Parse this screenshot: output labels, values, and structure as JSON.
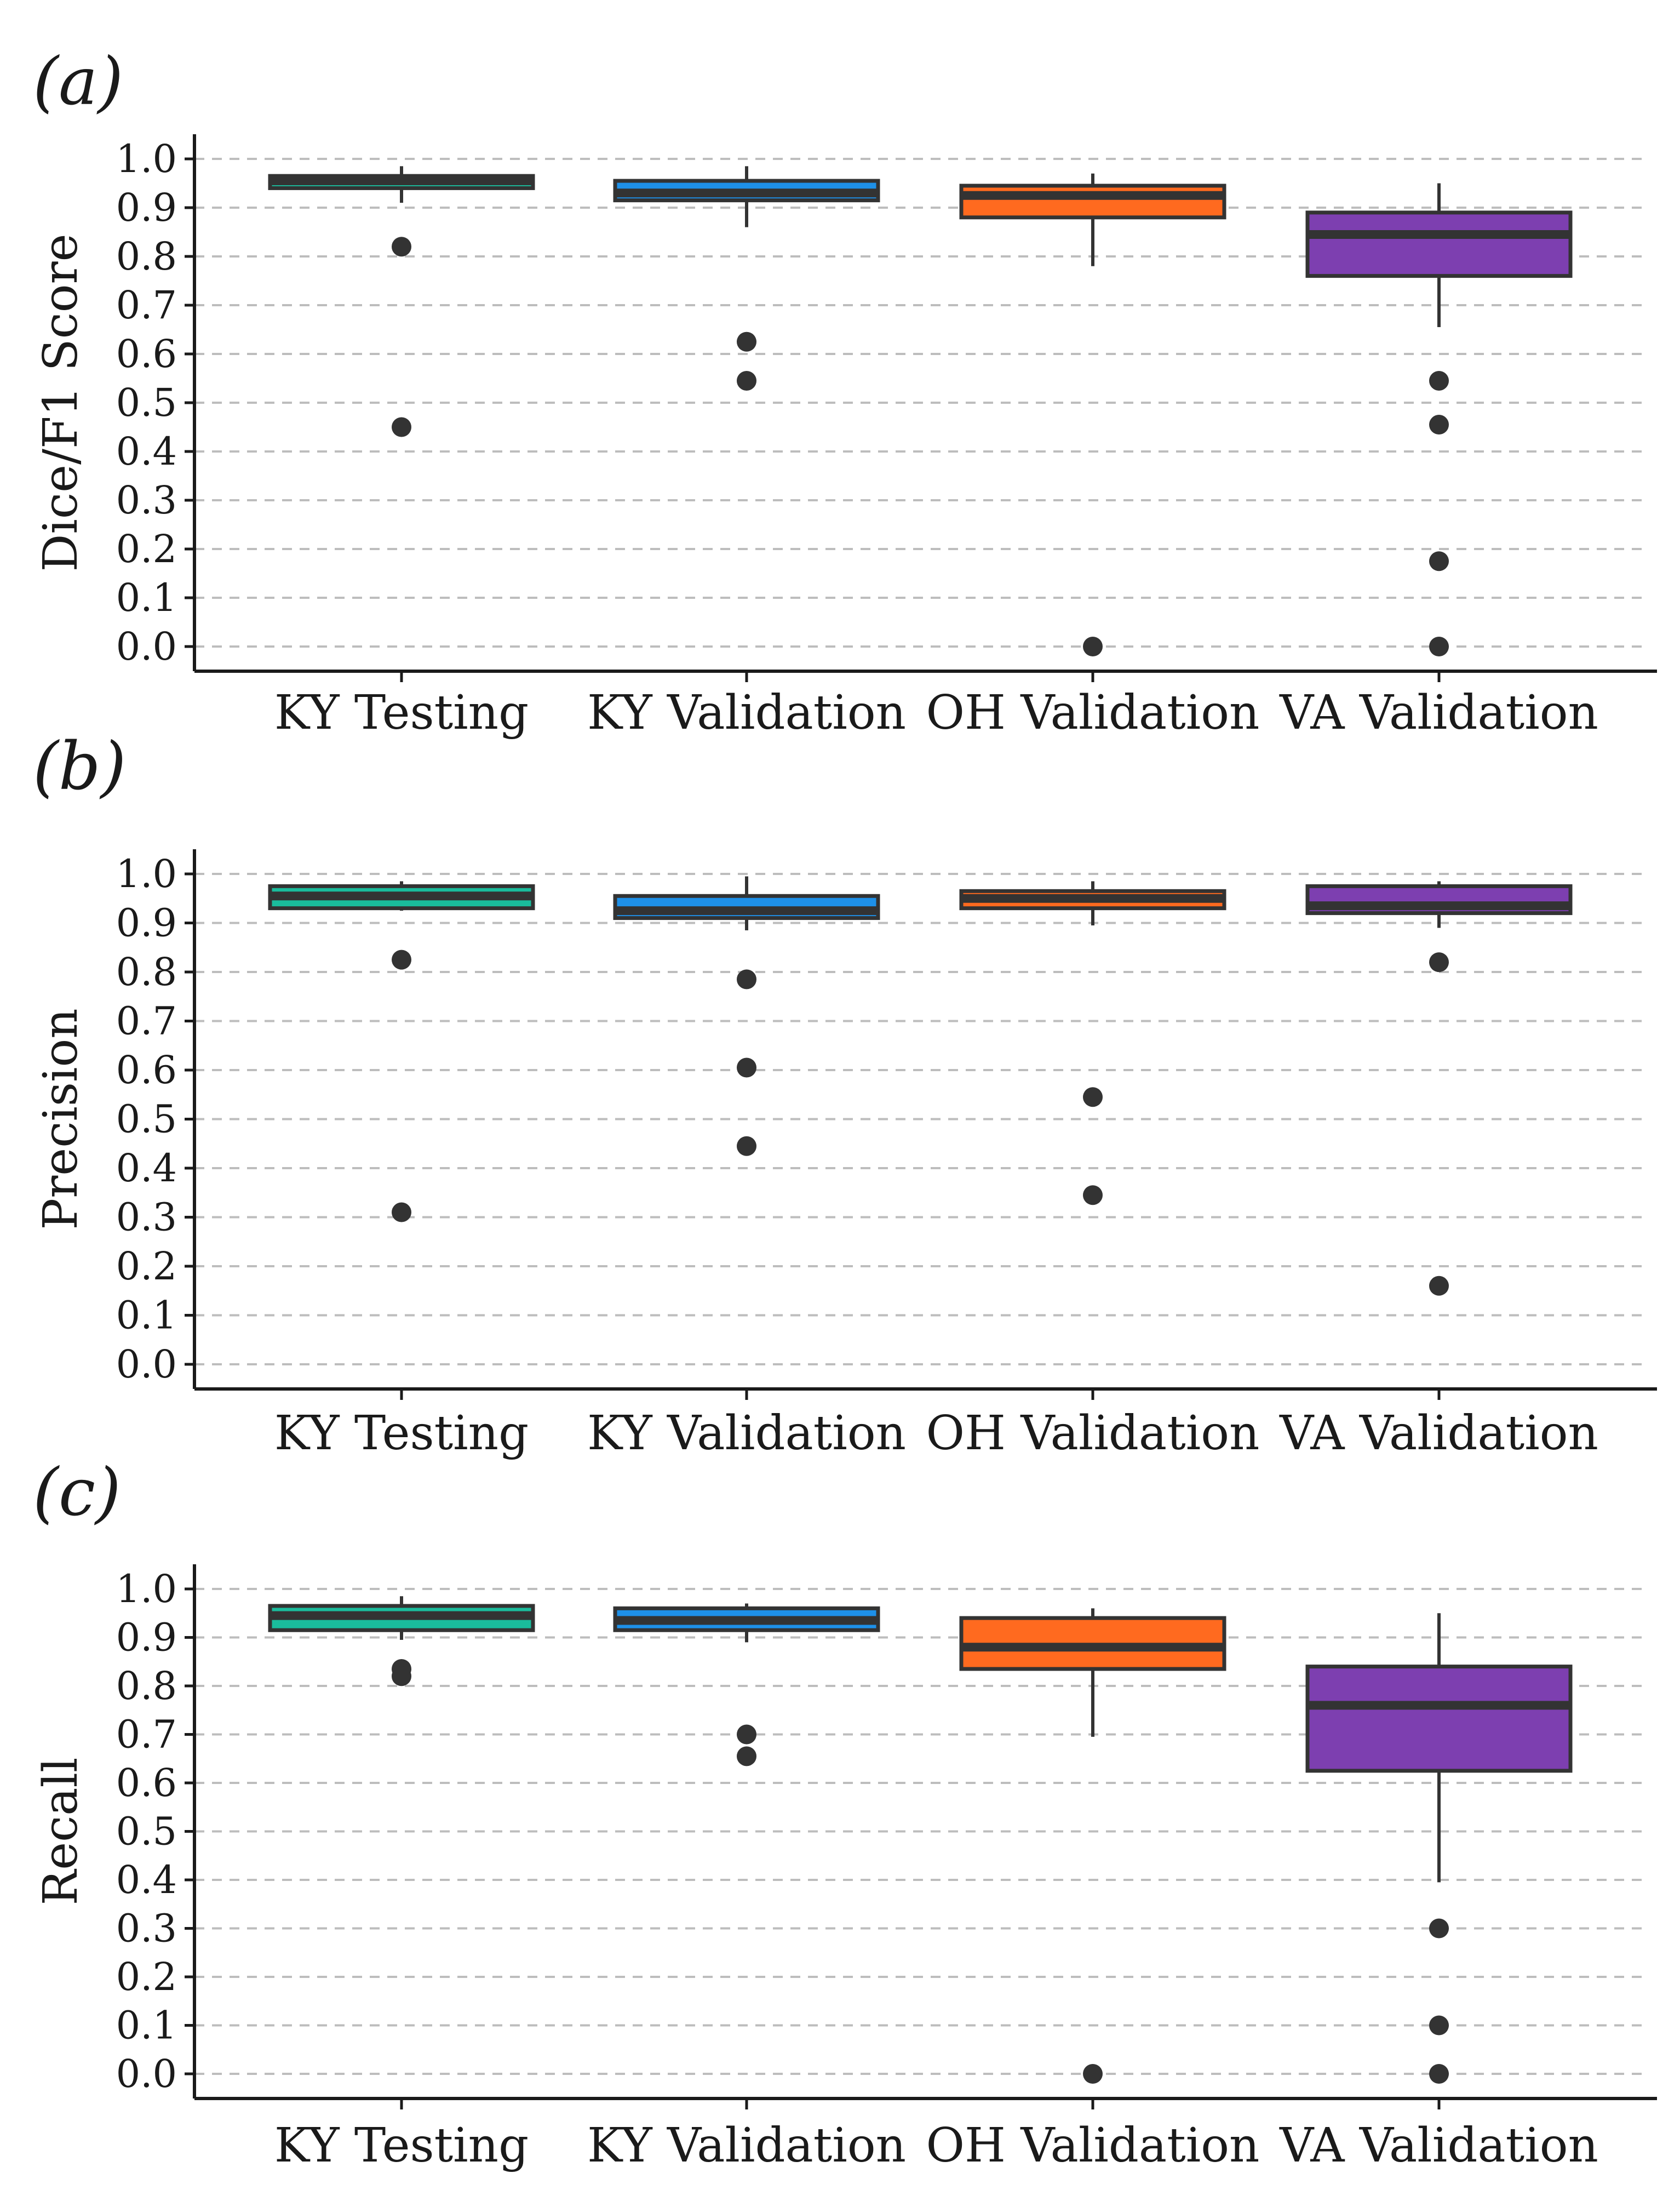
{
  "chart_data": [
    {
      "type": "box",
      "panel_label": "(a)",
      "ylabel": "Dice/F1 Score",
      "xlabel": "",
      "ylim": [
        0,
        1.0
      ],
      "yticks": [
        "0.0",
        "0.1",
        "0.2",
        "0.3",
        "0.4",
        "0.5",
        "0.6",
        "0.7",
        "0.8",
        "0.9",
        "1.0"
      ],
      "grid": true,
      "categories": [
        "KY Testing",
        "KY Validation",
        "OH Validation",
        "VA Validation"
      ],
      "colors": [
        "#1abc9c",
        "#1e90e8",
        "#ff6a1f",
        "#7d3fb0"
      ],
      "boxes": [
        {
          "min": 0.91,
          "q1": 0.94,
          "median": 0.955,
          "q3": 0.965,
          "max": 0.985,
          "outliers": [
            0.82,
            0.45
          ]
        },
        {
          "min": 0.86,
          "q1": 0.915,
          "median": 0.93,
          "q3": 0.955,
          "max": 0.985,
          "outliers": [
            0.625,
            0.545
          ]
        },
        {
          "min": 0.78,
          "q1": 0.88,
          "median": 0.925,
          "q3": 0.945,
          "max": 0.97,
          "outliers": [
            0.0
          ]
        },
        {
          "min": 0.655,
          "q1": 0.76,
          "median": 0.845,
          "q3": 0.89,
          "max": 0.95,
          "outliers": [
            0.545,
            0.455,
            0.175,
            0.0
          ]
        }
      ]
    },
    {
      "type": "box",
      "panel_label": "(b)",
      "ylabel": "Precision",
      "xlabel": "",
      "ylim": [
        0,
        1.0
      ],
      "yticks": [
        "0.0",
        "0.1",
        "0.2",
        "0.3",
        "0.4",
        "0.5",
        "0.6",
        "0.7",
        "0.8",
        "0.9",
        "1.0"
      ],
      "grid": true,
      "categories": [
        "KY Testing",
        "KY Validation",
        "OH Validation",
        "VA Validation"
      ],
      "colors": [
        "#1abc9c",
        "#1e90e8",
        "#ff6a1f",
        "#7d3fb0"
      ],
      "boxes": [
        {
          "min": 0.925,
          "q1": 0.93,
          "median": 0.955,
          "q3": 0.975,
          "max": 0.985,
          "outliers": [
            0.825,
            0.31
          ]
        },
        {
          "min": 0.885,
          "q1": 0.91,
          "median": 0.925,
          "q3": 0.955,
          "max": 0.995,
          "outliers": [
            0.785,
            0.605,
            0.445
          ]
        },
        {
          "min": 0.895,
          "q1": 0.93,
          "median": 0.95,
          "q3": 0.965,
          "max": 0.985,
          "outliers": [
            0.545,
            0.345
          ]
        },
        {
          "min": 0.89,
          "q1": 0.92,
          "median": 0.935,
          "q3": 0.975,
          "max": 0.985,
          "outliers": [
            0.82,
            0.16
          ]
        }
      ]
    },
    {
      "type": "box",
      "panel_label": "(c)",
      "ylabel": "Recall",
      "xlabel": "",
      "ylim": [
        0,
        1.0
      ],
      "yticks": [
        "0.0",
        "0.1",
        "0.2",
        "0.3",
        "0.4",
        "0.5",
        "0.6",
        "0.7",
        "0.8",
        "0.9",
        "1.0"
      ],
      "grid": true,
      "categories": [
        "KY Testing",
        "KY Validation",
        "OH Validation",
        "VA Validation"
      ],
      "colors": [
        "#1abc9c",
        "#1e90e8",
        "#ff6a1f",
        "#7d3fb0"
      ],
      "boxes": [
        {
          "min": 0.895,
          "q1": 0.915,
          "median": 0.945,
          "q3": 0.965,
          "max": 0.985,
          "outliers": [
            0.835,
            0.82
          ]
        },
        {
          "min": 0.89,
          "q1": 0.915,
          "median": 0.935,
          "q3": 0.96,
          "max": 0.97,
          "outliers": [
            0.7,
            0.655
          ]
        },
        {
          "min": 0.695,
          "q1": 0.835,
          "median": 0.88,
          "q3": 0.94,
          "max": 0.96,
          "outliers": [
            0.0
          ]
        },
        {
          "min": 0.395,
          "q1": 0.625,
          "median": 0.76,
          "q3": 0.84,
          "max": 0.95,
          "outliers": [
            0.3,
            0.1,
            0.0
          ]
        }
      ]
    }
  ]
}
